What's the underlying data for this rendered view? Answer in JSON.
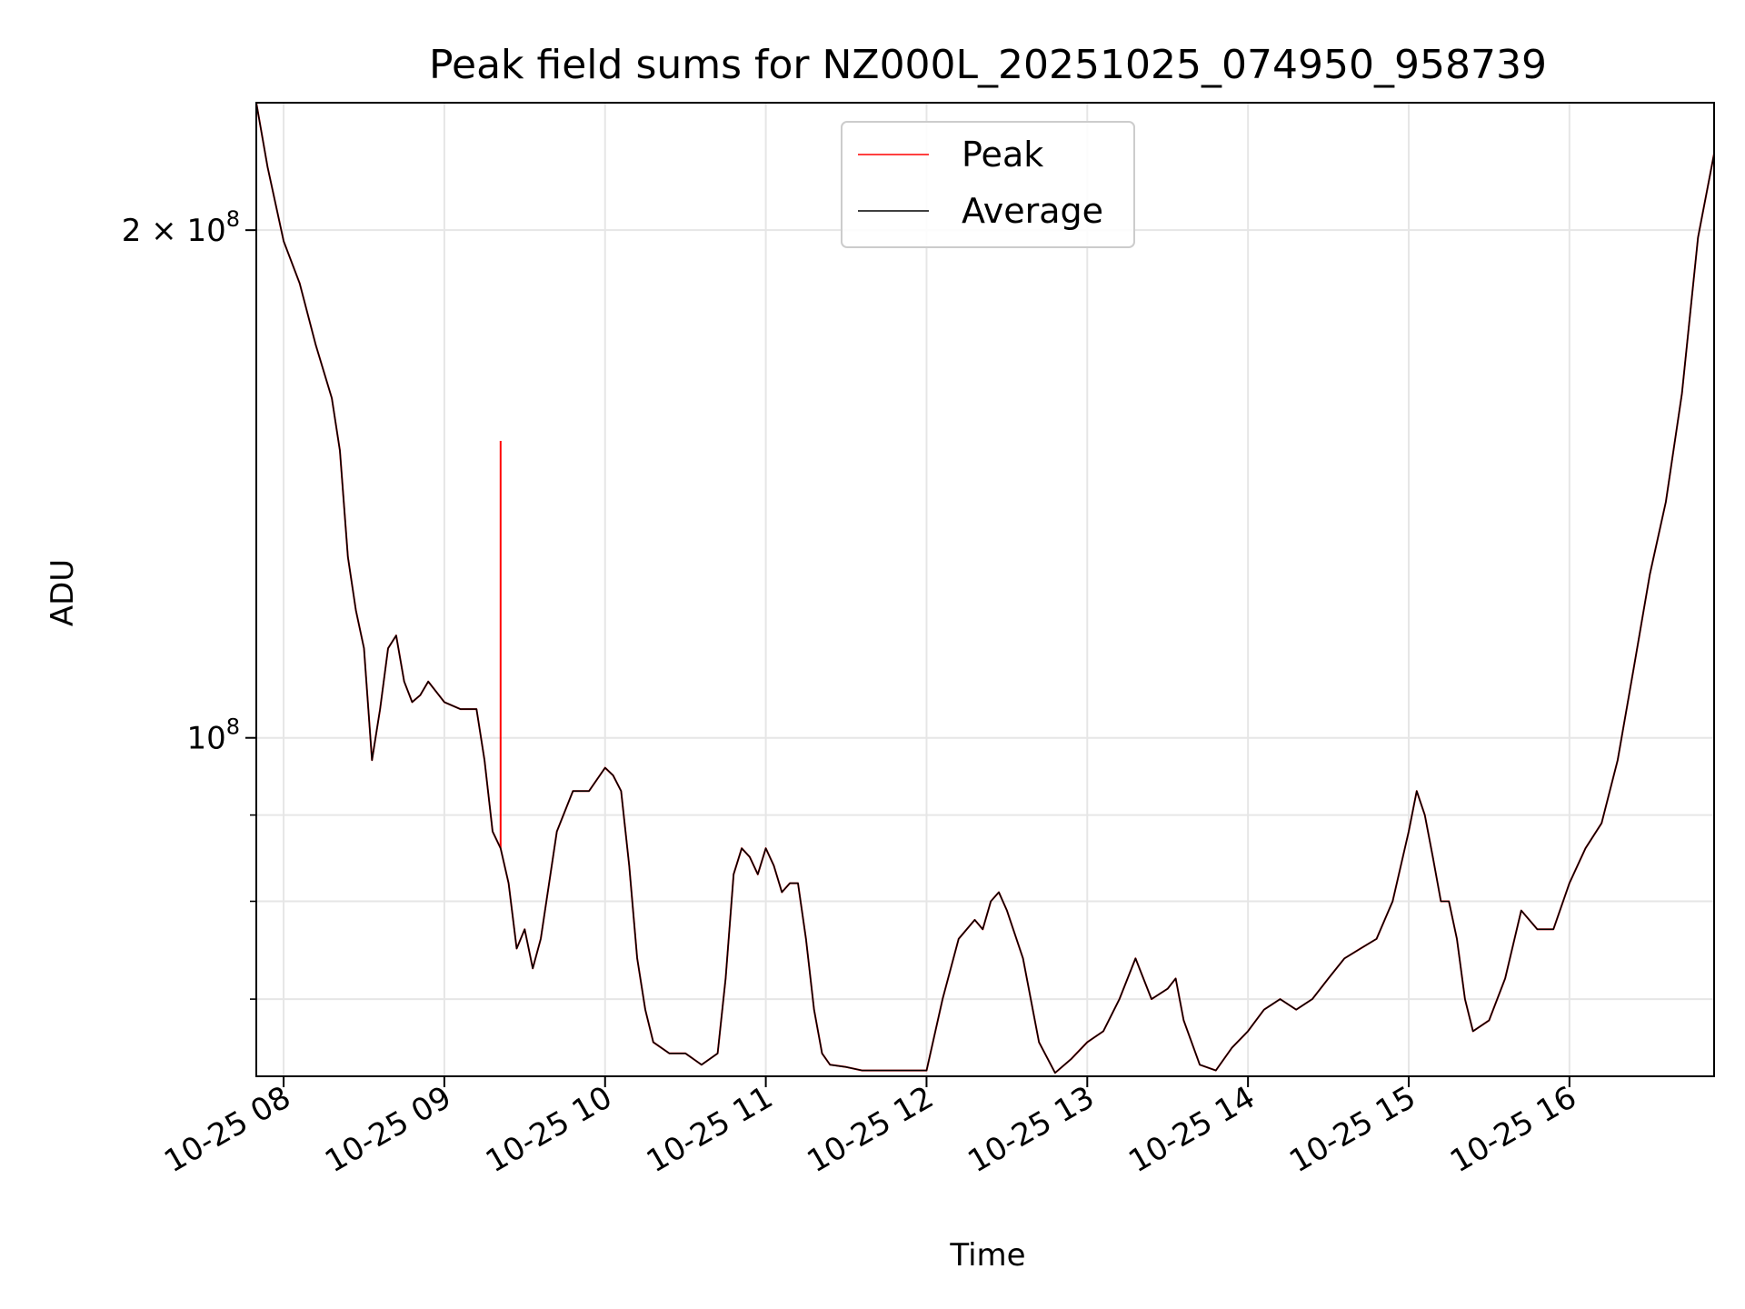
{
  "chart_data": {
    "type": "line",
    "title": "Peak field sums for NZ000L_20251025_074950_958739",
    "xlabel": "Time",
    "ylabel": "ADU",
    "yscale": "log",
    "x_unit": "hours since 2025-10-25 00:00",
    "xlim": [
      7.83,
      16.9
    ],
    "ylim": [
      63000000,
      238000000
    ],
    "grid": true,
    "legend": {
      "position": "top-center",
      "entries": [
        "Peak",
        "Average"
      ]
    },
    "x_ticks": [
      {
        "value": 8,
        "label": "10-25 08"
      },
      {
        "value": 9,
        "label": "10-25 09"
      },
      {
        "value": 10,
        "label": "10-25 10"
      },
      {
        "value": 11,
        "label": "10-25 11"
      },
      {
        "value": 12,
        "label": "10-25 12"
      },
      {
        "value": 13,
        "label": "10-25 13"
      },
      {
        "value": 14,
        "label": "10-25 14"
      },
      {
        "value": 15,
        "label": "10-25 15"
      },
      {
        "value": 16,
        "label": "10-25 16"
      }
    ],
    "y_major_ticks": [
      {
        "value": 100000000,
        "base": "10",
        "exp": "8",
        "mantissa": ""
      },
      {
        "value": 200000000,
        "base": "10",
        "exp": "8",
        "mantissa": "2 × "
      }
    ],
    "y_minor_ticks": [
      70000000,
      80000000,
      90000000
    ],
    "series": [
      {
        "name": "Peak",
        "color": "#ff0000",
        "spikes": [
          {
            "x": 9.35,
            "y": 150000000
          }
        ],
        "x": [
          7.83,
          7.9,
          8.0,
          8.1,
          8.2,
          8.3,
          8.35,
          8.4,
          8.45,
          8.5,
          8.55,
          8.6,
          8.65,
          8.7,
          8.75,
          8.8,
          8.85,
          8.9,
          9.0,
          9.1,
          9.2,
          9.25,
          9.3,
          9.35,
          9.4,
          9.45,
          9.5,
          9.55,
          9.6,
          9.7,
          9.8,
          9.9,
          10.0,
          10.05,
          10.1,
          10.15,
          10.2,
          10.25,
          10.3,
          10.4,
          10.5,
          10.6,
          10.7,
          10.75,
          10.8,
          10.85,
          10.9,
          10.95,
          11.0,
          11.05,
          11.1,
          11.15,
          11.2,
          11.25,
          11.3,
          11.35,
          11.4,
          11.5,
          11.6,
          11.7,
          11.8,
          11.9,
          12.0,
          12.1,
          12.2,
          12.3,
          12.35,
          12.4,
          12.45,
          12.5,
          12.6,
          12.7,
          12.8,
          12.9,
          13.0,
          13.1,
          13.2,
          13.3,
          13.4,
          13.5,
          13.55,
          13.6,
          13.7,
          13.8,
          13.9,
          14.0,
          14.1,
          14.2,
          14.3,
          14.4,
          14.5,
          14.6,
          14.7,
          14.8,
          14.9,
          15.0,
          15.05,
          15.1,
          15.15,
          15.2,
          15.25,
          15.3,
          15.35,
          15.4,
          15.5,
          15.6,
          15.7,
          15.8,
          15.9,
          16.0,
          16.1,
          16.2,
          16.3,
          16.4,
          16.5,
          16.6,
          16.7,
          16.8,
          16.9
        ],
        "y": [
          238000000,
          218000000,
          197000000,
          186000000,
          171000000,
          159000000,
          148000000,
          128000000,
          119000000,
          113000000,
          97000000,
          104000000,
          113000000,
          115000000,
          108000000,
          105000000,
          106000000,
          108000000,
          105000000,
          104000000,
          104000000,
          97000000,
          88000000,
          86000000,
          82000000,
          75000000,
          77000000,
          73000000,
          76000000,
          88000000,
          93000000,
          93000000,
          96000000,
          95000000,
          93000000,
          84000000,
          74000000,
          69000000,
          66000000,
          65000000,
          65000000,
          64000000,
          65000000,
          72000000,
          83000000,
          86000000,
          85000000,
          83000000,
          86000000,
          84000000,
          81000000,
          82000000,
          82000000,
          76000000,
          69000000,
          65000000,
          64000000,
          63800000,
          63500000,
          63500000,
          63500000,
          63500000,
          63500000,
          70000000,
          76000000,
          78000000,
          77000000,
          80000000,
          81000000,
          79000000,
          74000000,
          66000000,
          63300000,
          64500000,
          66000000,
          67000000,
          70000000,
          74000000,
          70000000,
          71000000,
          72000000,
          68000000,
          64000000,
          63500000,
          65500000,
          67000000,
          69000000,
          70000000,
          69000000,
          70000000,
          72000000,
          74000000,
          75000000,
          76000000,
          80000000,
          88000000,
          93000000,
          90000000,
          85000000,
          80000000,
          80000000,
          76000000,
          70000000,
          67000000,
          68000000,
          72000000,
          79000000,
          77000000,
          77000000,
          82000000,
          86000000,
          89000000,
          97000000,
          110000000,
          125000000,
          138000000,
          160000000,
          198000000,
          222000000
        ]
      },
      {
        "name": "Average",
        "color": "#000000",
        "x": [
          7.83,
          7.9,
          8.0,
          8.1,
          8.2,
          8.3,
          8.35,
          8.4,
          8.45,
          8.5,
          8.55,
          8.6,
          8.65,
          8.7,
          8.75,
          8.8,
          8.85,
          8.9,
          9.0,
          9.1,
          9.2,
          9.25,
          9.3,
          9.35,
          9.4,
          9.45,
          9.5,
          9.55,
          9.6,
          9.7,
          9.8,
          9.9,
          10.0,
          10.05,
          10.1,
          10.15,
          10.2,
          10.25,
          10.3,
          10.4,
          10.5,
          10.6,
          10.7,
          10.75,
          10.8,
          10.85,
          10.9,
          10.95,
          11.0,
          11.05,
          11.1,
          11.15,
          11.2,
          11.25,
          11.3,
          11.35,
          11.4,
          11.5,
          11.6,
          11.7,
          11.8,
          11.9,
          12.0,
          12.1,
          12.2,
          12.3,
          12.35,
          12.4,
          12.45,
          12.5,
          12.6,
          12.7,
          12.8,
          12.9,
          13.0,
          13.1,
          13.2,
          13.3,
          13.4,
          13.5,
          13.55,
          13.6,
          13.7,
          13.8,
          13.9,
          14.0,
          14.1,
          14.2,
          14.3,
          14.4,
          14.5,
          14.6,
          14.7,
          14.8,
          14.9,
          15.0,
          15.05,
          15.1,
          15.15,
          15.2,
          15.25,
          15.3,
          15.35,
          15.4,
          15.5,
          15.6,
          15.7,
          15.8,
          15.9,
          16.0,
          16.1,
          16.2,
          16.3,
          16.4,
          16.5,
          16.6,
          16.7,
          16.8,
          16.9
        ],
        "y": [
          238000000,
          218000000,
          197000000,
          186000000,
          171000000,
          159000000,
          148000000,
          128000000,
          119000000,
          113000000,
          97000000,
          104000000,
          113000000,
          115000000,
          108000000,
          105000000,
          106000000,
          108000000,
          105000000,
          104000000,
          104000000,
          97000000,
          88000000,
          86000000,
          82000000,
          75000000,
          77000000,
          73000000,
          76000000,
          88000000,
          93000000,
          93000000,
          96000000,
          95000000,
          93000000,
          84000000,
          74000000,
          69000000,
          66000000,
          65000000,
          65000000,
          64000000,
          65000000,
          72000000,
          83000000,
          86000000,
          85000000,
          83000000,
          86000000,
          84000000,
          81000000,
          82000000,
          82000000,
          76000000,
          69000000,
          65000000,
          64000000,
          63800000,
          63500000,
          63500000,
          63500000,
          63500000,
          63500000,
          70000000,
          76000000,
          78000000,
          77000000,
          80000000,
          81000000,
          79000000,
          74000000,
          66000000,
          63300000,
          64500000,
          66000000,
          67000000,
          70000000,
          74000000,
          70000000,
          71000000,
          72000000,
          68000000,
          64000000,
          63500000,
          65500000,
          67000000,
          69000000,
          70000000,
          69000000,
          70000000,
          72000000,
          74000000,
          75000000,
          76000000,
          80000000,
          88000000,
          93000000,
          90000000,
          85000000,
          80000000,
          80000000,
          76000000,
          70000000,
          67000000,
          68000000,
          72000000,
          79000000,
          77000000,
          77000000,
          82000000,
          86000000,
          89000000,
          97000000,
          110000000,
          125000000,
          138000000,
          160000000,
          198000000,
          222000000
        ]
      }
    ]
  }
}
